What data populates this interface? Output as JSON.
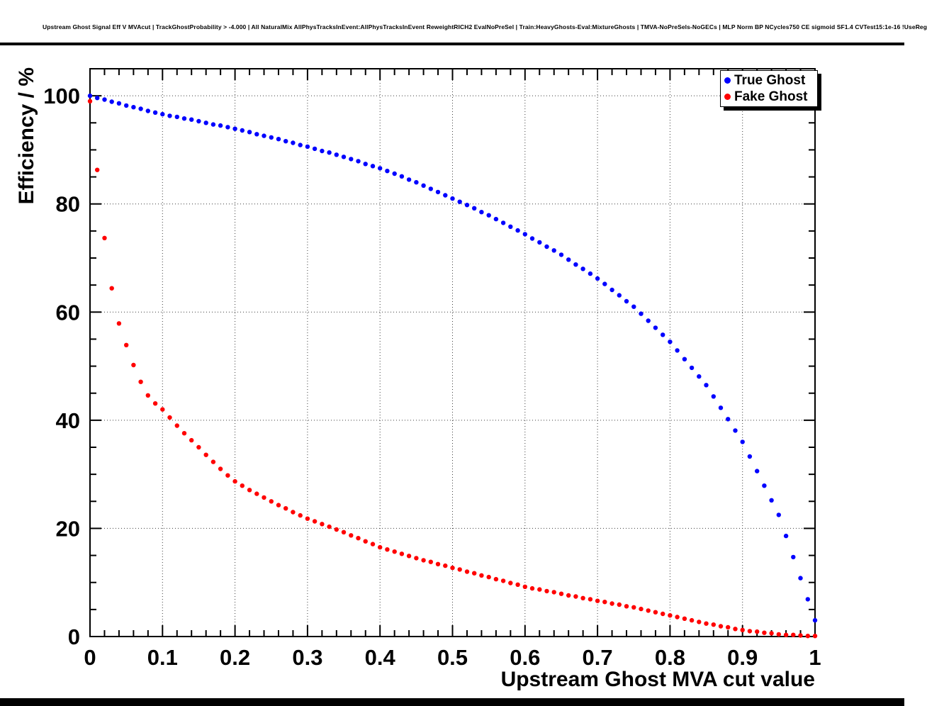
{
  "page": {
    "title": "Upstream Ghost Signal Eff V MVAcut | TrackGhostProbability > -4.000 | All NaturalMix AllPhysTracksInEvent:AllPhysTracksInEvent ReweightRICH2 EvalNoPreSel | Train:HeavyGhosts-Eval:MixtureGhosts | TMVA-NoPreSels-NoGECs | MLP Norm BP NCycles750 CE sigmoid SF1.4 CVTest15:1e-16 !UseReg"
  },
  "chart_data": {
    "type": "scatter",
    "title": "Upstream Ghost Signal Eff V MVAcut | TrackGhostProbability > -4.000 | All NaturalMix AllPhysTracksInEvent:AllPhysTracksInEvent ReweightRICH2 EvalNoPreSel | Train:HeavyGhosts-Eval:MixtureGhosts | TMVA-NoPreSels-NoGECs | MLP Norm BP NCycles750 CE sigmoid SF1.4 CVTest15:1e-16 !UseReg",
    "xlabel": "Upstream Ghost MVA cut value",
    "ylabel": "Efficiency / %",
    "xlim": [
      0,
      1
    ],
    "ylim": [
      0,
      105
    ],
    "grid": true,
    "marker": "full-circle",
    "x_ticks": {
      "major": [
        0,
        0.1,
        0.2,
        0.3,
        0.4,
        0.5,
        0.6,
        0.7,
        0.8,
        0.9,
        1
      ],
      "labels": [
        "0",
        "0.1",
        "0.2",
        "0.3",
        "0.4",
        "0.5",
        "0.6",
        "0.7",
        "0.8",
        "0.9",
        "1"
      ],
      "minor_step": 0.02
    },
    "y_ticks": {
      "major": [
        0,
        20,
        40,
        60,
        80,
        100
      ],
      "labels": [
        "0",
        "20",
        "40",
        "60",
        "80",
        "100"
      ],
      "minor_step": 5
    },
    "legend": {
      "position": "top-right",
      "entries": [
        {
          "label": "True Ghost",
          "color": "#0000ff"
        },
        {
          "label": "Fake Ghost",
          "color": "#ff0000"
        }
      ]
    },
    "x": [
      0,
      0.01,
      0.02,
      0.03,
      0.04,
      0.05,
      0.06,
      0.07,
      0.08,
      0.09,
      0.1,
      0.11,
      0.12,
      0.13,
      0.14,
      0.15,
      0.16,
      0.17,
      0.18,
      0.19,
      0.2,
      0.21,
      0.22,
      0.23,
      0.24,
      0.25,
      0.26,
      0.27,
      0.28,
      0.29,
      0.3,
      0.31,
      0.32,
      0.33,
      0.34,
      0.35,
      0.36,
      0.37,
      0.38,
      0.39,
      0.4,
      0.41,
      0.42,
      0.43,
      0.44,
      0.45,
      0.46,
      0.47,
      0.48,
      0.49,
      0.5,
      0.51,
      0.52,
      0.53,
      0.54,
      0.55,
      0.56,
      0.57,
      0.58,
      0.59,
      0.6,
      0.61,
      0.62,
      0.63,
      0.64,
      0.65,
      0.66,
      0.67,
      0.68,
      0.69,
      0.7,
      0.71,
      0.72,
      0.73,
      0.74,
      0.75,
      0.76,
      0.77,
      0.78,
      0.79,
      0.8,
      0.81,
      0.82,
      0.83,
      0.84,
      0.85,
      0.86,
      0.87,
      0.88,
      0.89,
      0.9,
      0.91,
      0.92,
      0.93,
      0.94,
      0.95,
      0.96,
      0.97,
      0.98,
      0.99,
      1
    ],
    "series": [
      {
        "name": "True Ghost",
        "color": "#0000ff",
        "values": [
          100,
          99.6,
          99.3,
          98.9,
          98.6,
          98.2,
          97.9,
          97.6,
          97.2,
          96.9,
          96.6,
          96.3,
          96.1,
          95.8,
          95.6,
          95.3,
          95,
          94.7,
          94.5,
          94.2,
          93.9,
          93.6,
          93.3,
          92.9,
          92.6,
          92.3,
          92,
          91.6,
          91.3,
          90.9,
          90.6,
          90.2,
          89.8,
          89.5,
          89.1,
          88.7,
          88.3,
          87.9,
          87.4,
          87,
          86.6,
          86.1,
          85.6,
          85.1,
          84.5,
          84,
          83.4,
          82.8,
          82.2,
          81.6,
          81,
          80.4,
          79.8,
          79.2,
          78.5,
          77.9,
          77.2,
          76.5,
          75.8,
          75.1,
          74.4,
          73.6,
          72.9,
          72.1,
          71.4,
          70.6,
          69.7,
          68.8,
          68,
          67.1,
          66.2,
          65.2,
          64.1,
          63.1,
          62,
          61,
          59.7,
          58.4,
          57.1,
          55.8,
          54.5,
          52.9,
          51.3,
          49.7,
          48.1,
          46.5,
          44.4,
          42.3,
          40.2,
          38.1,
          36,
          33.3,
          30.6,
          27.9,
          25.2,
          22.5,
          18.6,
          14.7,
          10.8,
          6.9,
          3
        ]
      },
      {
        "name": "Fake Ghost",
        "color": "#ff0000",
        "values": [
          99,
          86.3,
          73.7,
          64.4,
          57.9,
          53.9,
          50.2,
          47.1,
          44.6,
          43.1,
          42,
          40.5,
          39,
          37.6,
          36.3,
          35,
          33.6,
          32.3,
          31,
          29.8,
          28.7,
          27.9,
          27.1,
          26.4,
          25.7,
          25,
          24.3,
          23.7,
          23,
          22.4,
          21.8,
          21.3,
          20.8,
          20.3,
          19.8,
          19.3,
          18.7,
          18.2,
          17.6,
          17.1,
          16.5,
          16.1,
          15.7,
          15.3,
          14.9,
          14.5,
          14.1,
          13.8,
          13.4,
          13.1,
          12.7,
          12.4,
          12,
          11.7,
          11.3,
          11,
          10.6,
          10.3,
          9.9,
          9.6,
          9.2,
          8.9,
          8.7,
          8.4,
          8.2,
          7.9,
          7.6,
          7.4,
          7.1,
          6.9,
          6.6,
          6.4,
          6.1,
          5.9,
          5.6,
          5.4,
          5.1,
          4.8,
          4.5,
          4.2,
          3.9,
          3.6,
          3.3,
          3,
          2.7,
          2.4,
          2.2,
          1.9,
          1.7,
          1.4,
          1.2,
          1,
          0.9,
          0.7,
          0.6,
          0.4,
          0.3,
          0.3,
          0.2,
          0.1,
          0.1
        ]
      }
    ]
  }
}
